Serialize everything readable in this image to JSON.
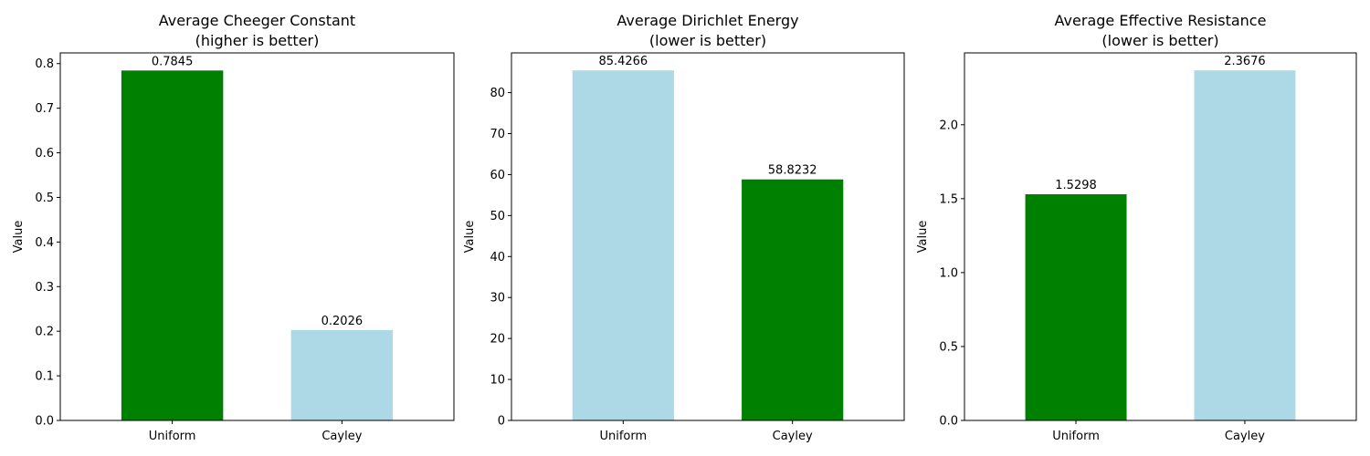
{
  "chart_data": [
    {
      "type": "bar",
      "title": "Average Cheeger Constant",
      "subtitle": "(higher is better)",
      "xlabel": "",
      "ylabel": "Value",
      "categories": [
        "Uniform",
        "Cayley"
      ],
      "values": [
        0.7845,
        0.2026
      ],
      "data_labels": [
        "0.7845",
        "0.2026"
      ],
      "colors": [
        "#008000",
        "#add8e6"
      ],
      "ylim": [
        0,
        0.824
      ],
      "yticks": [
        0.0,
        0.1,
        0.2,
        0.3,
        0.4,
        0.5,
        0.6,
        0.7,
        0.8
      ],
      "ytick_labels": [
        "0.0",
        "0.1",
        "0.2",
        "0.3",
        "0.4",
        "0.5",
        "0.6",
        "0.7",
        "0.8"
      ],
      "grid": false,
      "legend": "none"
    },
    {
      "type": "bar",
      "title": "Average Dirichlet Energy",
      "subtitle": "(lower is better)",
      "xlabel": "",
      "ylabel": "Value",
      "categories": [
        "Uniform",
        "Cayley"
      ],
      "values": [
        85.4266,
        58.8232
      ],
      "data_labels": [
        "85.4266",
        "58.8232"
      ],
      "colors": [
        "#add8e6",
        "#008000"
      ],
      "ylim": [
        0,
        89.7
      ],
      "yticks": [
        0,
        10,
        20,
        30,
        40,
        50,
        60,
        70,
        80
      ],
      "ytick_labels": [
        "0",
        "10",
        "20",
        "30",
        "40",
        "50",
        "60",
        "70",
        "80"
      ],
      "grid": false,
      "legend": "none"
    },
    {
      "type": "bar",
      "title": "Average Effective Resistance",
      "subtitle": "(lower is better)",
      "xlabel": "",
      "ylabel": "Value",
      "categories": [
        "Uniform",
        "Cayley"
      ],
      "values": [
        1.5298,
        2.3676
      ],
      "data_labels": [
        "1.5298",
        "2.3676"
      ],
      "colors": [
        "#008000",
        "#add8e6"
      ],
      "ylim": [
        0,
        2.486
      ],
      "yticks": [
        0.0,
        0.5,
        1.0,
        1.5,
        2.0
      ],
      "ytick_labels": [
        "0.0",
        "0.5",
        "1.0",
        "1.5",
        "2.0"
      ],
      "grid": false,
      "legend": "none"
    }
  ]
}
